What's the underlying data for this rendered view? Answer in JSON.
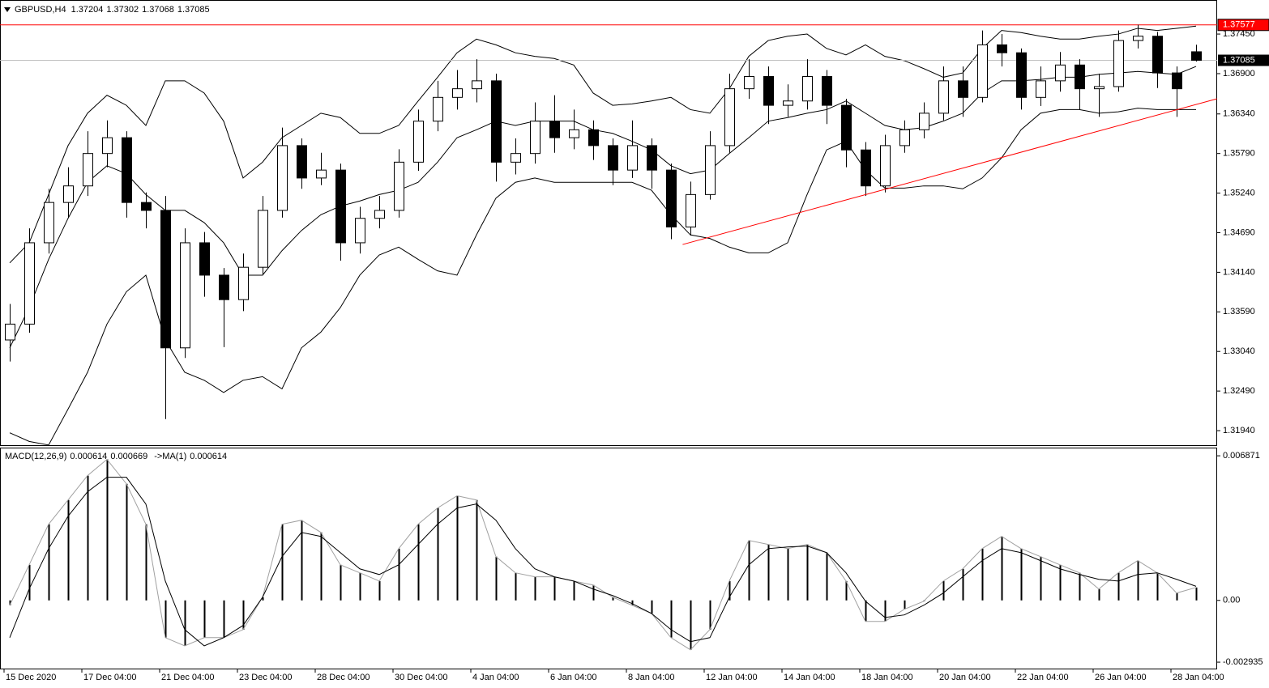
{
  "chart_data": {
    "type": "candlestick",
    "symbol": "GBPUSD,H4",
    "color_up": "#ffffff",
    "color_down": "#000000",
    "candles": [
      [
        1.332,
        1.337,
        1.329,
        1.3342
      ],
      [
        1.3342,
        1.3475,
        1.333,
        1.3455
      ],
      [
        1.3455,
        1.353,
        1.344,
        1.3511
      ],
      [
        1.3511,
        1.356,
        1.349,
        1.3534
      ],
      [
        1.3534,
        1.361,
        1.352,
        1.3579
      ],
      [
        1.3579,
        1.3625,
        1.356,
        1.3601
      ],
      [
        1.3601,
        1.361,
        1.349,
        1.3511
      ],
      [
        1.3511,
        1.3525,
        1.3475,
        1.35
      ],
      [
        1.35,
        1.352,
        1.321,
        1.3309
      ],
      [
        1.3309,
        1.3475,
        1.3295,
        1.3455
      ],
      [
        1.3455,
        1.347,
        1.338,
        1.341
      ],
      [
        1.341,
        1.342,
        1.331,
        1.3376
      ],
      [
        1.3376,
        1.344,
        1.336,
        1.3421
      ],
      [
        1.3421,
        1.352,
        1.341,
        1.35
      ],
      [
        1.35,
        1.3615,
        1.349,
        1.359
      ],
      [
        1.359,
        1.36,
        1.353,
        1.3545
      ],
      [
        1.3545,
        1.358,
        1.3535,
        1.3556
      ],
      [
        1.3556,
        1.3565,
        1.343,
        1.3455
      ],
      [
        1.3455,
        1.3505,
        1.344,
        1.3489
      ],
      [
        1.3489,
        1.352,
        1.3475,
        1.35
      ],
      [
        1.35,
        1.3585,
        1.349,
        1.3567
      ],
      [
        1.3567,
        1.364,
        1.3555,
        1.3624
      ],
      [
        1.3624,
        1.368,
        1.361,
        1.3657
      ],
      [
        1.3657,
        1.3695,
        1.364,
        1.3669
      ],
      [
        1.3669,
        1.371,
        1.365,
        1.368
      ],
      [
        1.368,
        1.369,
        1.354,
        1.3567
      ],
      [
        1.3567,
        1.36,
        1.355,
        1.3579
      ],
      [
        1.3579,
        1.365,
        1.3565,
        1.3624
      ],
      [
        1.3624,
        1.366,
        1.358,
        1.3601
      ],
      [
        1.3601,
        1.364,
        1.3585,
        1.3612
      ],
      [
        1.3612,
        1.3625,
        1.357,
        1.359
      ],
      [
        1.359,
        1.36,
        1.3535,
        1.3556
      ],
      [
        1.3556,
        1.3625,
        1.3545,
        1.359
      ],
      [
        1.359,
        1.36,
        1.353,
        1.3556
      ],
      [
        1.3556,
        1.3565,
        1.346,
        1.3477
      ],
      [
        1.3477,
        1.354,
        1.3465,
        1.3522
      ],
      [
        1.3522,
        1.361,
        1.3515,
        1.359
      ],
      [
        1.359,
        1.369,
        1.358,
        1.3669
      ],
      [
        1.3669,
        1.371,
        1.3655,
        1.3686
      ],
      [
        1.3686,
        1.37,
        1.362,
        1.3646
      ],
      [
        1.3646,
        1.3675,
        1.363,
        1.3652
      ],
      [
        1.3652,
        1.371,
        1.364,
        1.3686
      ],
      [
        1.3686,
        1.3695,
        1.362,
        1.3646
      ],
      [
        1.3646,
        1.3655,
        1.356,
        1.3584
      ],
      [
        1.3584,
        1.3595,
        1.352,
        1.3534
      ],
      [
        1.3534,
        1.3605,
        1.3525,
        1.359
      ],
      [
        1.359,
        1.3625,
        1.358,
        1.3612
      ],
      [
        1.3612,
        1.365,
        1.36,
        1.3635
      ],
      [
        1.3635,
        1.37,
        1.3625,
        1.368
      ],
      [
        1.368,
        1.37,
        1.363,
        1.3657
      ],
      [
        1.3657,
        1.375,
        1.365,
        1.373
      ],
      [
        1.373,
        1.3745,
        1.37,
        1.3719
      ],
      [
        1.3719,
        1.3725,
        1.364,
        1.3657
      ],
      [
        1.3657,
        1.37,
        1.3645,
        1.368
      ],
      [
        1.368,
        1.372,
        1.3665,
        1.3702
      ],
      [
        1.3702,
        1.371,
        1.364,
        1.3669
      ],
      [
        1.3669,
        1.369,
        1.363,
        1.3672
      ],
      [
        1.3672,
        1.375,
        1.3665,
        1.3736
      ],
      [
        1.3736,
        1.3758,
        1.3725,
        1.3742
      ],
      [
        1.3742,
        1.3748,
        1.367,
        1.3691
      ],
      [
        1.3691,
        1.37,
        1.363,
        1.3669
      ],
      [
        1.37204,
        1.37302,
        1.37068,
        1.37085
      ]
    ],
    "bands": {
      "color": "#000000",
      "upper": [
        1.3427,
        1.3455,
        1.3522,
        1.359,
        1.3635,
        1.366,
        1.3646,
        1.3618,
        1.368,
        1.368,
        1.3663,
        1.3624,
        1.3545,
        1.3567,
        1.3601,
        1.3618,
        1.3635,
        1.3629,
        1.3607,
        1.3607,
        1.3618,
        1.3652,
        1.3685,
        1.3719,
        1.3738,
        1.373,
        1.3719,
        1.3714,
        1.3711,
        1.3702,
        1.3663,
        1.3646,
        1.3648,
        1.3652,
        1.3657,
        1.364,
        1.3635,
        1.3669,
        1.3714,
        1.3736,
        1.3742,
        1.3745,
        1.3725,
        1.3716,
        1.373,
        1.3714,
        1.3708,
        1.3697,
        1.3685,
        1.3691,
        1.3725,
        1.375,
        1.3747,
        1.3742,
        1.3738,
        1.3738,
        1.3742,
        1.3745,
        1.3753,
        1.375,
        1.3753,
        1.3756
      ],
      "middle": [
        1.3309,
        1.3365,
        1.3432,
        1.3489,
        1.3539,
        1.3562,
        1.3551,
        1.3522,
        1.35,
        1.35,
        1.3483,
        1.3455,
        1.341,
        1.341,
        1.3444,
        1.3472,
        1.3494,
        1.3506,
        1.3513,
        1.3522,
        1.3528,
        1.3539,
        1.3567,
        1.3601,
        1.3612,
        1.3624,
        1.3618,
        1.3624,
        1.3624,
        1.3624,
        1.3612,
        1.3607,
        1.3596,
        1.3584,
        1.3562,
        1.3551,
        1.3556,
        1.3579,
        1.3601,
        1.3624,
        1.3629,
        1.3635,
        1.364,
        1.3652,
        1.3635,
        1.3618,
        1.3612,
        1.3615,
        1.3624,
        1.3635,
        1.3663,
        1.368,
        1.368,
        1.3682,
        1.3685,
        1.3685,
        1.3689,
        1.3691,
        1.3693,
        1.3691,
        1.3689,
        1.37
      ],
      "lower": [
        1.3191,
        1.3179,
        1.3174,
        1.3224,
        1.3275,
        1.3342,
        1.3387,
        1.341,
        1.332,
        1.3275,
        1.3264,
        1.3247,
        1.3264,
        1.3269,
        1.3252,
        1.3309,
        1.3331,
        1.3365,
        1.341,
        1.3438,
        1.3449,
        1.3432,
        1.3416,
        1.341,
        1.3466,
        1.3517,
        1.3539,
        1.3545,
        1.3539,
        1.3539,
        1.3539,
        1.3539,
        1.3539,
        1.3528,
        1.3494,
        1.3466,
        1.3461,
        1.3449,
        1.3441,
        1.3441,
        1.3455,
        1.3522,
        1.3584,
        1.3596,
        1.3556,
        1.3531,
        1.3531,
        1.3534,
        1.3534,
        1.353,
        1.3545,
        1.3573,
        1.3612,
        1.3635,
        1.364,
        1.364,
        1.3635,
        1.3637,
        1.3642,
        1.364,
        1.364,
        1.364
      ]
    },
    "xlim": [
      -0.5,
      62.083
    ],
    "xticks": [
      {
        "value": 0,
        "label": "15 Dec 2020"
      },
      {
        "value": 4,
        "label": "17 Dec 04:00"
      },
      {
        "value": 8,
        "label": "21 Dec 04:00"
      },
      {
        "value": 12,
        "label": "23 Dec 04:00"
      },
      {
        "value": 16,
        "label": "28 Dec 04:00"
      },
      {
        "value": 20,
        "label": "30 Dec 04:00"
      },
      {
        "value": 24,
        "label": "4 Jan 04:00"
      },
      {
        "value": 28,
        "label": "6 Jan 04:00"
      },
      {
        "value": 32,
        "label": "8 Jan 04:00"
      },
      {
        "value": 36,
        "label": "12 Jan 04:00"
      },
      {
        "value": 40,
        "label": "14 Jan 04:00"
      },
      {
        "value": 44,
        "label": "18 Jan 04:00"
      },
      {
        "value": 48,
        "label": "20 Jan 04:00"
      },
      {
        "value": 52,
        "label": "22 Jan 04:00"
      },
      {
        "value": 56,
        "label": "26 Jan 04:00"
      },
      {
        "value": 60,
        "label": "28 Jan 04:00"
      }
    ],
    "ylim": [
      1.31738,
      1.37923
    ],
    "yticks": [
      {
        "value": 1.3745,
        "label": "1.37450"
      },
      {
        "value": 1.369,
        "label": "1.36900"
      },
      {
        "value": 1.3634,
        "label": "1.36340"
      },
      {
        "value": 1.3579,
        "label": "1.35790"
      },
      {
        "value": 1.3524,
        "label": "1.35240"
      },
      {
        "value": 1.3469,
        "label": "1.34690"
      },
      {
        "value": 1.3414,
        "label": "1.34140"
      },
      {
        "value": 1.3359,
        "label": "1.33590"
      },
      {
        "value": 1.3304,
        "label": "1.33040"
      },
      {
        "value": 1.3249,
        "label": "1.32490"
      },
      {
        "value": 1.3194,
        "label": "1.31940"
      }
    ],
    "bid_color": "#c0c0c0",
    "hline": {
      "value": 1.37577,
      "color": "#ff0000"
    },
    "trendline": {
      "color": "#ff0000",
      "points": [
        [
          34.6,
          1.34526
        ],
        [
          62.08,
          1.36551
        ]
      ]
    },
    "indicator": {
      "type": "macd",
      "label": "MACD(12,26,9)",
      "signal_label": "->MA(1)",
      "color": "#000000",
      "line_color": "#a0a0a0",
      "macd": [
        -0.00023,
        0.00169,
        0.00362,
        0.00477,
        0.00593,
        0.0067,
        0.00554,
        0.00362,
        -0.00177,
        -0.00216,
        -0.00177,
        -0.00177,
        -0.00139,
        0.00015,
        0.00362,
        0.00381,
        0.00323,
        0.00169,
        0.00131,
        0.00092,
        0.00246,
        0.00362,
        0.00439,
        0.00497,
        0.00477,
        0.00208,
        0.00131,
        0.00112,
        0.00112,
        0.00092,
        0.00073,
        0.00015,
        -0.00023,
        -0.00062,
        -0.00177,
        -0.00235,
        -0.00139,
        0.00092,
        0.00285,
        0.00266,
        0.00246,
        0.00266,
        0.00227,
        0.00092,
        -0.001,
        -0.001,
        -0.00042,
        -4e-05,
        0.00092,
        0.0015,
        0.00246,
        0.00304,
        0.00246,
        0.00208,
        0.00169,
        0.00131,
        0.00054,
        0.00131,
        0.00189,
        0.00131,
        0.00035,
        0.000614
      ],
      "signal": [
        -0.00177,
        0.00054,
        0.00246,
        0.004,
        0.00516,
        0.00585,
        0.00585,
        0.00458,
        0.00092,
        -0.00139,
        -0.00216,
        -0.00177,
        -0.00119,
        0.00015,
        0.00208,
        0.00323,
        0.00304,
        0.00227,
        0.0015,
        0.00123,
        0.00169,
        0.00266,
        0.00362,
        0.00439,
        0.00458,
        0.00381,
        0.00246,
        0.0015,
        0.00112,
        0.00092,
        0.00054,
        0.00023,
        -0.00015,
        -0.00062,
        -0.00139,
        -0.00196,
        -0.00177,
        0.00015,
        0.00169,
        0.00246,
        0.00254,
        0.00258,
        0.00227,
        0.00131,
        -4e-05,
        -0.00081,
        -0.00069,
        -0.00023,
        0.00035,
        0.00112,
        0.00189,
        0.00246,
        0.00227,
        0.00189,
        0.0015,
        0.00123,
        0.001,
        0.00092,
        0.00123,
        0.00131,
        0.001,
        0.000669
      ],
      "ylim": [
        -0.00324,
        0.00726
      ],
      "yticks": [
        0.006871,
        {
          "value": 0,
          "label": "0.00"
        },
        -0.002935
      ]
    }
  }
}
